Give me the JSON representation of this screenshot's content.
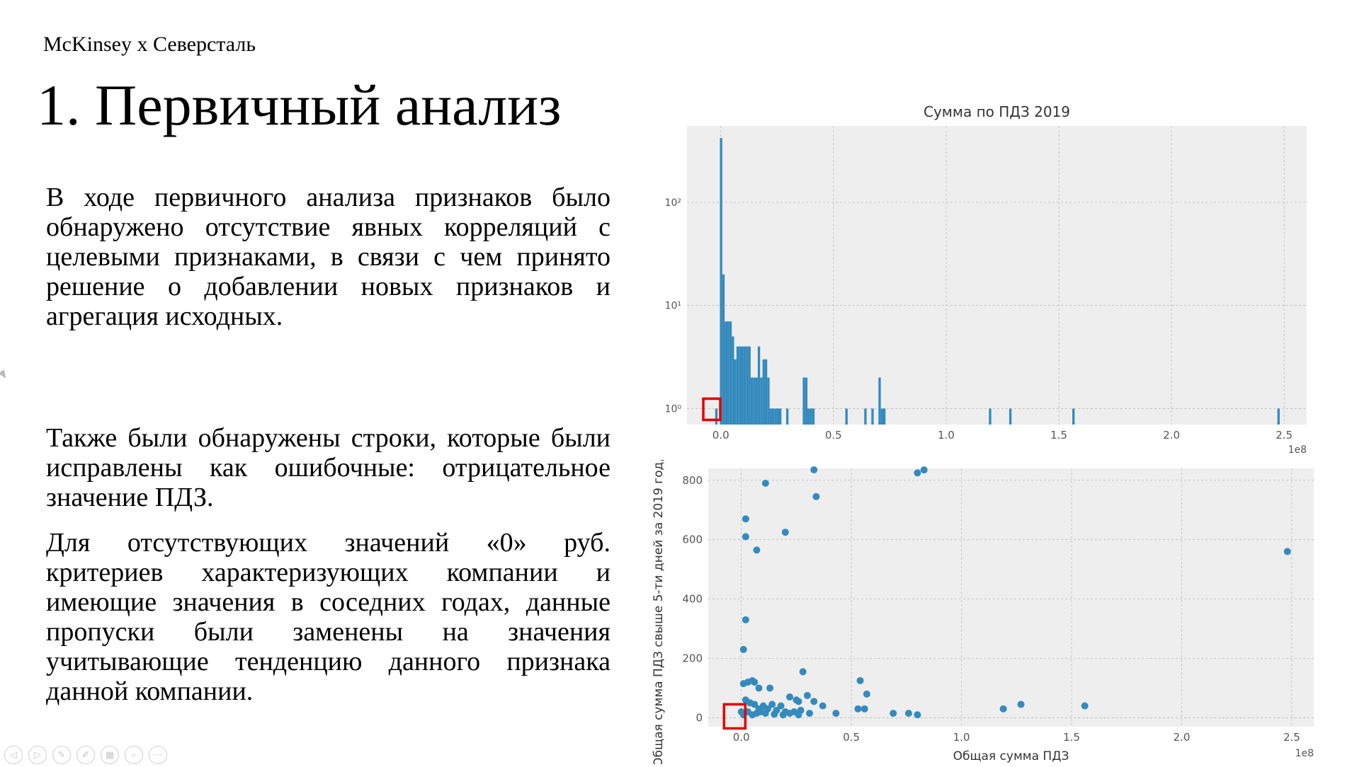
{
  "slide": {
    "brand": "McKinsey  x  Северсталь",
    "title": "1. Первичный анализ",
    "paragraphs": [
      "В ходе первичного анализа признаков было обнаружено отсутствие явных корреляций с целевыми признаками, в связи с чем принято решение о добавлении новых признаков и агрегация исходных.",
      "Также были обнаружены строки, которые были исправлены как ошибочные: отрицательное значение ПДЗ.",
      "Для отсутствующих значений «0» руб. критериев характеризующих компании и имеющие значения в соседних годах, данные пропуски были заменены на значения учитывающие тенденцию данного признака данной компании."
    ]
  },
  "colors": {
    "bar": "#348abd",
    "plot_bg": "#eeeeee",
    "grid": "#bcbcbc",
    "highlight": "#e00000"
  },
  "chart_data": [
    {
      "type": "bar",
      "title": "Сумма по ПДЗ 2019",
      "xlabel": "",
      "ylabel": "",
      "x_offset_label": "1e8",
      "yscale": "log",
      "xlim": [
        -0.15,
        2.6
      ],
      "ylim": [
        0.7,
        550
      ],
      "xticks": [
        "0.0",
        "0.5",
        "1.0",
        "1.5",
        "2.0",
        "2.5"
      ],
      "yticks": [
        "10⁰",
        "10¹",
        "10²"
      ],
      "bin_edges_start": -0.025,
      "bin_width": 0.0105,
      "counts": [
        1,
        0,
        420,
        20,
        7,
        7,
        7,
        5,
        3,
        4,
        4,
        4,
        4,
        4,
        4,
        2,
        2,
        2,
        4,
        2,
        3,
        3,
        2,
        1,
        1,
        1,
        1,
        1,
        0,
        0,
        1,
        0,
        0,
        0,
        0,
        0,
        0,
        2,
        2,
        1,
        1,
        1,
        0,
        0,
        0,
        0,
        0,
        0,
        0,
        0,
        0,
        0,
        0,
        0,
        0,
        1,
        0,
        0,
        0,
        0,
        0,
        0,
        0,
        1,
        0,
        0,
        1,
        0,
        0,
        2,
        1,
        1,
        0
      ],
      "extra_bars": [
        {
          "x": 1.195,
          "count": 1
        },
        {
          "x": 1.285,
          "count": 1
        },
        {
          "x": 1.565,
          "count": 1
        },
        {
          "x": 2.475,
          "count": 1
        }
      ],
      "grid": true,
      "highlight_box": "near x=0, y=1"
    },
    {
      "type": "scatter",
      "title": "",
      "xlabel": "Общая сумма ПДЗ",
      "ylabel": "Общая сумма ПДЗ свыше 5-ти дней за 2019 год, руб.",
      "x_offset_label": "1e8",
      "xlim": [
        -0.15,
        2.6
      ],
      "ylim": [
        -30,
        840
      ],
      "xticks": [
        "0.0",
        "0.5",
        "1.0",
        "1.5",
        "2.0",
        "2.5"
      ],
      "yticks": [
        "0",
        "200",
        "400",
        "600",
        "800"
      ],
      "points": [
        [
          0.33,
          840
        ],
        [
          0.83,
          835
        ],
        [
          0.8,
          825
        ],
        [
          0.11,
          790
        ],
        [
          0.34,
          745
        ],
        [
          0.02,
          670
        ],
        [
          0.2,
          625
        ],
        [
          0.02,
          610
        ],
        [
          0.07,
          565
        ],
        [
          2.48,
          560
        ],
        [
          0.02,
          330
        ],
        [
          0.01,
          230
        ],
        [
          0.28,
          155
        ],
        [
          0.54,
          125
        ],
        [
          0.03,
          120
        ],
        [
          0.05,
          125
        ],
        [
          0.06,
          120
        ],
        [
          0.01,
          115
        ],
        [
          0.08,
          100
        ],
        [
          0.13,
          100
        ],
        [
          0.57,
          80
        ],
        [
          0.3,
          75
        ],
        [
          0.22,
          70
        ],
        [
          0.25,
          60
        ],
        [
          0.26,
          55
        ],
        [
          0.33,
          55
        ],
        [
          0.37,
          40
        ],
        [
          0.14,
          45
        ],
        [
          0.1,
          40
        ],
        [
          0.18,
          40
        ],
        [
          1.27,
          45
        ],
        [
          1.56,
          40
        ],
        [
          0.53,
          30
        ],
        [
          0.56,
          30
        ],
        [
          1.19,
          30
        ],
        [
          0.02,
          60
        ],
        [
          0.04,
          50
        ],
        [
          0.06,
          45
        ],
        [
          0.08,
          30
        ],
        [
          0.12,
          30
        ],
        [
          0.16,
          25
        ],
        [
          0.2,
          20
        ],
        [
          0.24,
          20
        ],
        [
          0.27,
          25
        ],
        [
          0.31,
          15
        ],
        [
          0.43,
          15
        ],
        [
          0.69,
          15
        ],
        [
          0.76,
          15
        ],
        [
          0.8,
          10
        ],
        [
          0.0,
          20
        ],
        [
          0.01,
          10
        ],
        [
          0.03,
          20
        ],
        [
          0.05,
          10
        ],
        [
          0.07,
          15
        ],
        [
          0.09,
          20
        ],
        [
          0.11,
          15
        ],
        [
          0.15,
          12
        ],
        [
          0.19,
          10
        ],
        [
          0.22,
          15
        ],
        [
          0.26,
          10
        ]
      ],
      "grid": true,
      "highlight_box": "near x=0, y=0"
    }
  ],
  "toolbar": {
    "icons": [
      "back-icon",
      "forward-icon",
      "pen-icon",
      "edit-icon",
      "slides-icon",
      "zoom-icon",
      "more-icon"
    ]
  }
}
